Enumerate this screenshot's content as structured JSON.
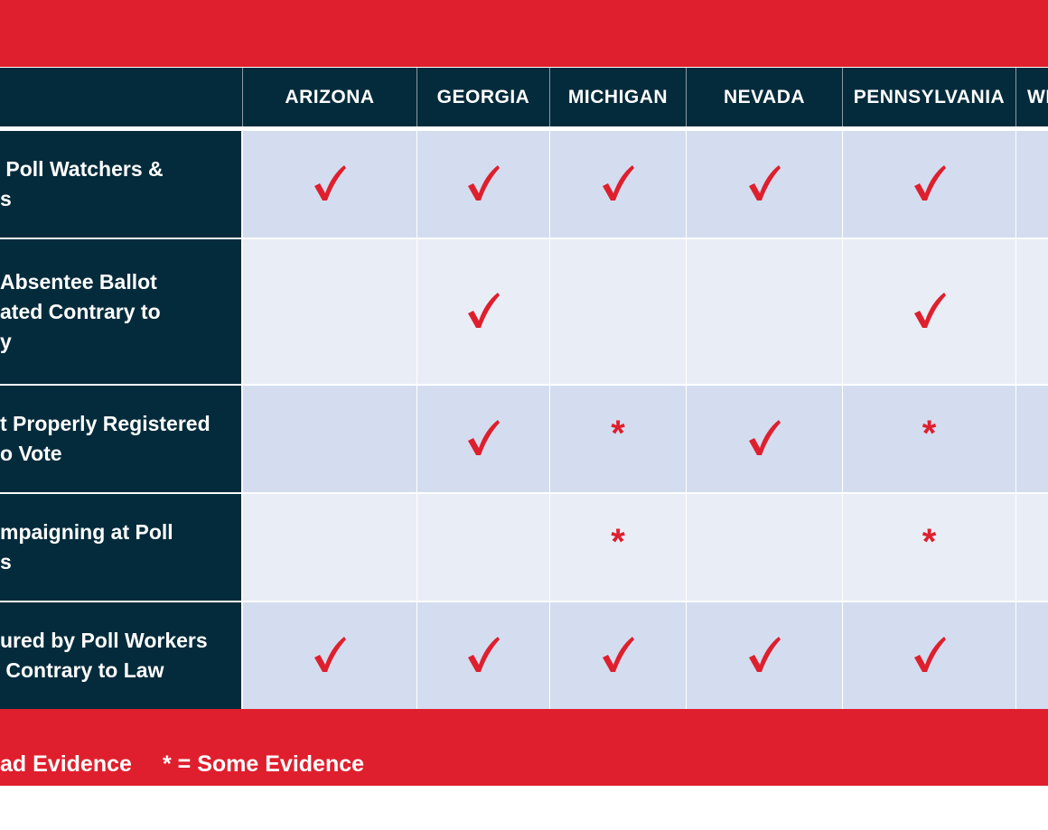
{
  "columns": [
    "ARIZONA",
    "GEORGIA",
    "MICHIGAN",
    "NEVADA",
    "PENNSYLVANIA",
    "WI"
  ],
  "rows": [
    {
      "label_lines": [
        " Poll Watchers &",
        "s"
      ],
      "indent": [
        0,
        0
      ],
      "marks": [
        "check",
        "check",
        "check",
        "check",
        "check",
        ""
      ]
    },
    {
      "label_lines": [
        "Absentee Ballot",
        "ated Contrary to",
        "y"
      ],
      "marks": [
        "",
        "check",
        "",
        "",
        "check",
        ""
      ]
    },
    {
      "label_lines": [
        "t Properly Registered",
        "o Vote"
      ],
      "marks": [
        "",
        "check",
        "star",
        "check",
        "star",
        ""
      ]
    },
    {
      "label_lines": [
        "mpaigning at Poll",
        "s"
      ],
      "marks": [
        "",
        "",
        "star",
        "",
        "star",
        ""
      ]
    },
    {
      "label_lines": [
        "ured by Poll Workers",
        " Contrary to Law"
      ],
      "marks": [
        "check",
        "check",
        "check",
        "check",
        "check",
        ""
      ]
    }
  ],
  "legend": {
    "check_text": "ad Evidence",
    "star_text": "* = Some Evidence"
  },
  "colors": {
    "red": "#df1f2d",
    "navy": "#032b3b",
    "row_light": "#d3ddef",
    "row_lighter": "#e8edf6"
  }
}
